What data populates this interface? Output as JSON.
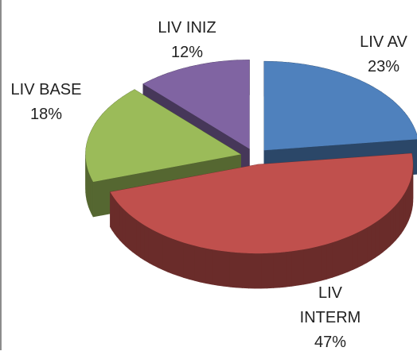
{
  "chart_data": {
    "type": "pie",
    "categories": [
      "LIV AV",
      "LIV INTERM",
      "LIV BASE",
      "LIV INIZ"
    ],
    "values": [
      23,
      47,
      18,
      12
    ],
    "value_labels": [
      "23%",
      "47%",
      "18%",
      "12%"
    ],
    "colors": [
      "#4f81bd",
      "#c0504d",
      "#9bbb59",
      "#8064a2"
    ]
  }
}
